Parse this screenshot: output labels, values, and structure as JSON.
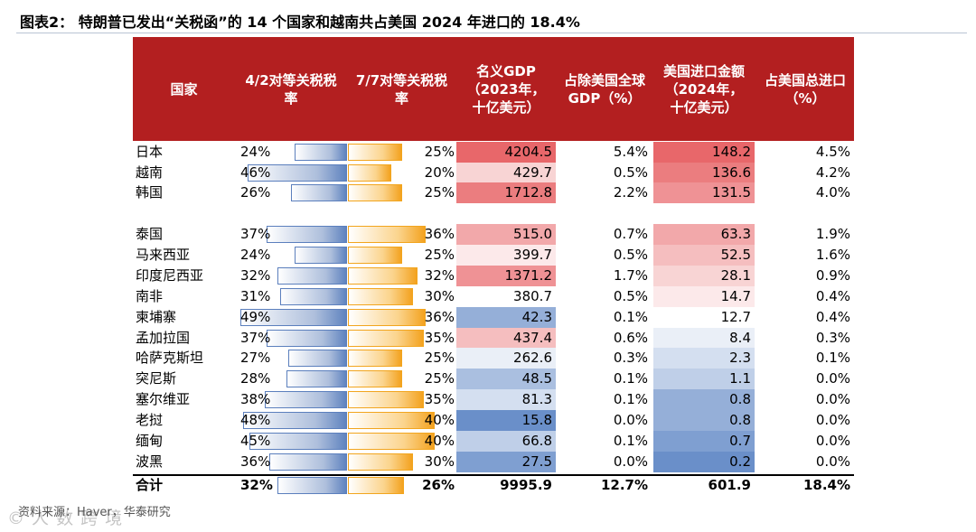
{
  "title": "图表2：  特朗普已发出“关税函”的 14 个国家和越南共占美国 2024 年进口的 18.4%",
  "headers": {
    "country": "国家",
    "rate42": "4/2对等关税税率",
    "rate77": "7/7对等关税税率",
    "gdp": "名义GDP（2023年，十亿美元）",
    "gdp_share": "占除美国全球GDP（%）",
    "imports": "美国进口金额（2024年，十亿美元）",
    "import_share": "占美国总进口（%）"
  },
  "group1": [
    {
      "country": "日本",
      "rate42": "24%",
      "rate42_value": 24,
      "rate77": "25%",
      "rate77_value": 25,
      "gdp": "4204.5",
      "gdp_value": 4204.5,
      "gdp_share": "5.4%",
      "imports": "148.2",
      "imports_value": 148.2,
      "import_share": "4.5%"
    },
    {
      "country": "越南",
      "rate42": "46%",
      "rate42_value": 46,
      "rate77": "20%",
      "rate77_value": 20,
      "gdp": "429.7",
      "gdp_value": 429.7,
      "gdp_share": "0.5%",
      "imports": "136.6",
      "imports_value": 136.6,
      "import_share": "4.2%"
    },
    {
      "country": "韩国",
      "rate42": "26%",
      "rate42_value": 26,
      "rate77": "25%",
      "rate77_value": 25,
      "gdp": "1712.8",
      "gdp_value": 1712.8,
      "gdp_share": "2.2%",
      "imports": "131.5",
      "imports_value": 131.5,
      "import_share": "4.0%"
    }
  ],
  "group2": [
    {
      "country": "泰国",
      "rate42": "37%",
      "rate42_value": 37,
      "rate77": "36%",
      "rate77_value": 36,
      "gdp": "515.0",
      "gdp_value": 515.0,
      "gdp_share": "0.7%",
      "imports": "63.3",
      "imports_value": 63.3,
      "import_share": "1.9%"
    },
    {
      "country": "马来西亚",
      "rate42": "24%",
      "rate42_value": 24,
      "rate77": "25%",
      "rate77_value": 25,
      "gdp": "399.7",
      "gdp_value": 399.7,
      "gdp_share": "0.5%",
      "imports": "52.5",
      "imports_value": 52.5,
      "import_share": "1.6%"
    },
    {
      "country": "印度尼西亚",
      "rate42": "32%",
      "rate42_value": 32,
      "rate77": "32%",
      "rate77_value": 32,
      "gdp": "1371.2",
      "gdp_value": 1371.2,
      "gdp_share": "1.7%",
      "imports": "28.1",
      "imports_value": 28.1,
      "import_share": "0.9%"
    },
    {
      "country": "南非",
      "rate42": "31%",
      "rate42_value": 31,
      "rate77": "30%",
      "rate77_value": 30,
      "gdp": "380.7",
      "gdp_value": 380.7,
      "gdp_share": "0.5%",
      "imports": "14.7",
      "imports_value": 14.7,
      "import_share": "0.4%"
    },
    {
      "country": "柬埔寨",
      "rate42": "49%",
      "rate42_value": 49,
      "rate77": "36%",
      "rate77_value": 36,
      "gdp": "42.3",
      "gdp_value": 42.3,
      "gdp_share": "0.1%",
      "imports": "12.7",
      "imports_value": 12.7,
      "import_share": "0.4%"
    },
    {
      "country": "孟加拉国",
      "rate42": "37%",
      "rate42_value": 37,
      "rate77": "35%",
      "rate77_value": 35,
      "gdp": "437.4",
      "gdp_value": 437.4,
      "gdp_share": "0.6%",
      "imports": "8.4",
      "imports_value": 8.4,
      "import_share": "0.3%"
    },
    {
      "country": "哈萨克斯坦",
      "rate42": "27%",
      "rate42_value": 27,
      "rate77": "25%",
      "rate77_value": 25,
      "gdp": "262.6",
      "gdp_value": 262.6,
      "gdp_share": "0.3%",
      "imports": "2.3",
      "imports_value": 2.3,
      "import_share": "0.1%"
    },
    {
      "country": "突尼斯",
      "rate42": "28%",
      "rate42_value": 28,
      "rate77": "25%",
      "rate77_value": 25,
      "gdp": "48.5",
      "gdp_value": 48.5,
      "gdp_share": "0.1%",
      "imports": "1.1",
      "imports_value": 1.1,
      "import_share": "0.0%"
    },
    {
      "country": "塞尔维亚",
      "rate42": "38%",
      "rate42_value": 38,
      "rate77": "35%",
      "rate77_value": 35,
      "gdp": "81.3",
      "gdp_value": 81.3,
      "gdp_share": "0.1%",
      "imports": "0.8",
      "imports_value": 0.8,
      "import_share": "0.0%"
    },
    {
      "country": "老挝",
      "rate42": "48%",
      "rate42_value": 48,
      "rate77": "40%",
      "rate77_value": 40,
      "gdp": "15.8",
      "gdp_value": 15.8,
      "gdp_share": "0.0%",
      "imports": "0.8",
      "imports_value": 0.8,
      "import_share": "0.0%"
    },
    {
      "country": "缅甸",
      "rate42": "45%",
      "rate42_value": 45,
      "rate77": "40%",
      "rate77_value": 40,
      "gdp": "66.8",
      "gdp_value": 66.8,
      "gdp_share": "0.1%",
      "imports": "0.7",
      "imports_value": 0.7,
      "import_share": "0.0%"
    },
    {
      "country": "波黑",
      "rate42": "36%",
      "rate42_value": 36,
      "rate77": "30%",
      "rate77_value": 30,
      "gdp": "27.5",
      "gdp_value": 27.5,
      "gdp_share": "0.0%",
      "imports": "0.2",
      "imports_value": 0.2,
      "import_share": "0.0%"
    }
  ],
  "total": {
    "country": "合计",
    "rate42": "32%",
    "rate42_value": 32,
    "rate77": "26%",
    "rate77_value": 26,
    "gdp": "9995.9",
    "gdp_share": "12.7%",
    "imports": "601.9",
    "import_share": "18.4%"
  },
  "source": "资料来源：Haver，华泰研究",
  "watermark": "© 人 数 跨 境",
  "colors": {
    "header_bg": "#b31f20",
    "blue_bar": "#5f83bf",
    "orange_bar": "#f3a21f",
    "heat_high": "#e8676a",
    "heat_mid": "#ffffff",
    "heat_low": "#6a8fc9"
  }
}
